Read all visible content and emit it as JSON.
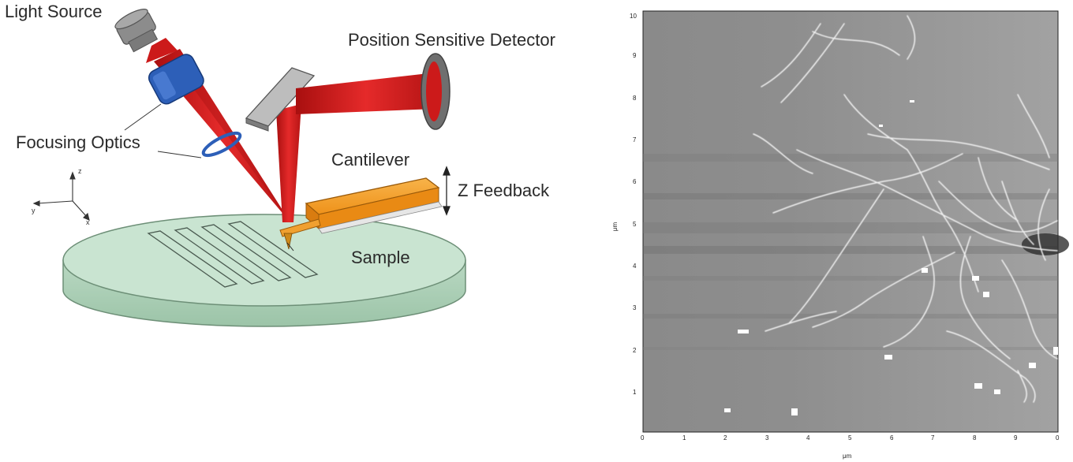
{
  "diagram": {
    "labels": {
      "light_source": "Light Source",
      "detector": "Position Sensitive Detector",
      "focusing_optics": "Focusing Optics",
      "cantilever": "Cantilever",
      "z_feedback": "Z Feedback",
      "sample": "Sample"
    },
    "axes": {
      "z": "z",
      "y": "y",
      "x": "x"
    },
    "colors": {
      "laser": "#d81e1e",
      "cantilever": "#f39a1e",
      "sample": "#c7e2cf",
      "optics": "#2d5fb8"
    }
  },
  "afm_image": {
    "x_ticks": [
      "0",
      "1",
      "2",
      "3",
      "4",
      "5",
      "6",
      "7",
      "8",
      "9",
      "0"
    ],
    "y_ticks": [
      "1",
      "2",
      "3",
      "4",
      "5",
      "6",
      "7",
      "8",
      "9",
      "10"
    ],
    "x_unit": "μm",
    "y_unit": "μm"
  }
}
